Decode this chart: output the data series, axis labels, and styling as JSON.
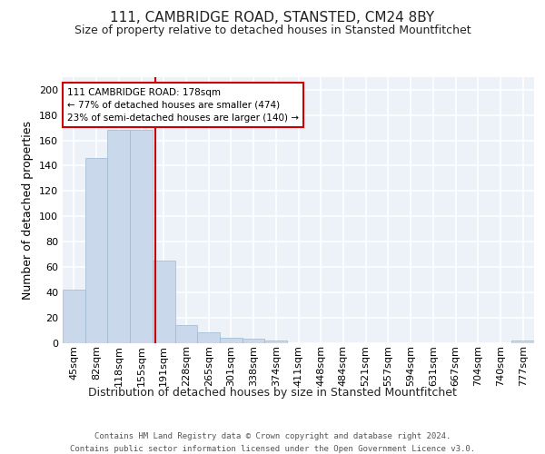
{
  "title1": "111, CAMBRIDGE ROAD, STANSTED, CM24 8BY",
  "title2": "Size of property relative to detached houses in Stansted Mountfitchet",
  "xlabel": "Distribution of detached houses by size in Stansted Mountfitchet",
  "ylabel": "Number of detached properties",
  "bin_labels": [
    "45sqm",
    "82sqm",
    "118sqm",
    "155sqm",
    "191sqm",
    "228sqm",
    "265sqm",
    "301sqm",
    "338sqm",
    "374sqm",
    "411sqm",
    "448sqm",
    "484sqm",
    "521sqm",
    "557sqm",
    "594sqm",
    "631sqm",
    "667sqm",
    "704sqm",
    "740sqm",
    "777sqm"
  ],
  "bar_values": [
    42,
    146,
    168,
    168,
    65,
    14,
    8,
    4,
    3,
    2,
    0,
    0,
    0,
    0,
    0,
    0,
    0,
    0,
    0,
    0,
    2
  ],
  "bar_color": "#c9d9eb",
  "bar_edgecolor": "#a0b8d0",
  "redline_x": 3.62,
  "redline_color": "#cc0000",
  "annotation_text": "111 CAMBRIDGE ROAD: 178sqm\n← 77% of detached houses are smaller (474)\n23% of semi-detached houses are larger (140) →",
  "annotation_box_facecolor": "#ffffff",
  "annotation_box_edgecolor": "#cc0000",
  "ylim": [
    0,
    210
  ],
  "yticks": [
    0,
    20,
    40,
    60,
    80,
    100,
    120,
    140,
    160,
    180,
    200
  ],
  "footer": "Contains HM Land Registry data © Crown copyright and database right 2024.\nContains public sector information licensed under the Open Government Licence v3.0.",
  "background_color": "#edf2f9",
  "grid_color": "#ffffff",
  "title1_fontsize": 11,
  "title2_fontsize": 9,
  "xlabel_fontsize": 9,
  "ylabel_fontsize": 9,
  "tick_fontsize": 8,
  "footer_fontsize": 6.5,
  "annotation_fontsize": 7.5
}
